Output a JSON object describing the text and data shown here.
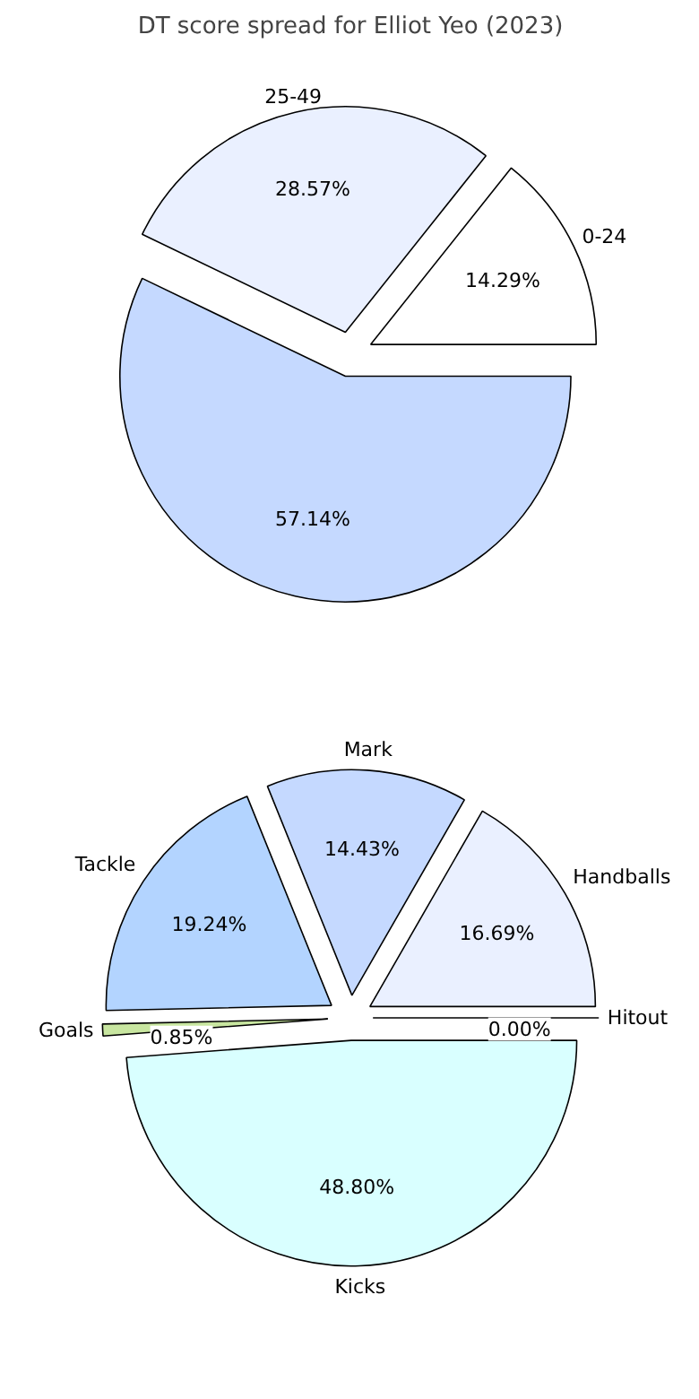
{
  "chart_data": [
    {
      "type": "pie",
      "title": "DT score spread for Elliot Yeo (2023)",
      "categories": [
        "0-24",
        "25-49",
        null
      ],
      "values": [
        14.29,
        28.57,
        57.14
      ],
      "colors": [
        "#ffffff",
        "#eaf0ff",
        "#c5d9ff"
      ],
      "value_labels": [
        "14.29%",
        "28.57%",
        "57.14%"
      ]
    },
    {
      "type": "pie",
      "categories": [
        "Hitout",
        "Handballs",
        "Mark",
        "Tackle",
        "Goals",
        "Kicks"
      ],
      "values": [
        0.0,
        16.69,
        14.43,
        19.24,
        0.85,
        48.8
      ],
      "colors": [
        "#ffffff",
        "#eaf0ff",
        "#c5d9ff",
        "#b3d4ff",
        "#c8e6a0",
        "#d9ffff"
      ],
      "value_labels": [
        "0.00%",
        "16.69%",
        "14.43%",
        "19.24%",
        "0.85%",
        "48.80%"
      ]
    }
  ]
}
